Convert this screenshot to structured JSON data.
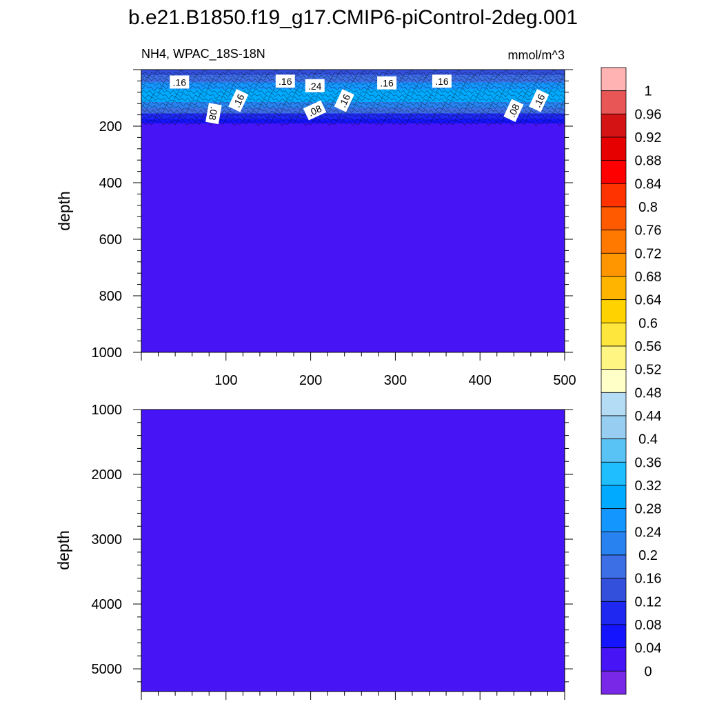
{
  "title": "b.e21.B1850.f19_g17.CMIP6-piControl-2deg.001",
  "chart_data": [
    {
      "type": "heatmap",
      "panel": "upper",
      "left_label": "NH4, WPAC_18S-18N",
      "right_label": "mmol/m^3",
      "ylabel": "depth",
      "xlabel": "",
      "xlim": [
        0,
        500
      ],
      "ylim": [
        1000,
        0
      ],
      "x_ticks": [
        100,
        200,
        300,
        400,
        500
      ],
      "y_ticks": [
        200,
        400,
        600,
        800,
        1000
      ],
      "depth_profile": [
        {
          "depth": 0,
          "value": 0.14
        },
        {
          "depth": 20,
          "value": 0.18
        },
        {
          "depth": 45,
          "value": 0.25
        },
        {
          "depth": 70,
          "value": 0.3
        },
        {
          "depth": 95,
          "value": 0.3
        },
        {
          "depth": 115,
          "value": 0.22
        },
        {
          "depth": 135,
          "value": 0.16
        },
        {
          "depth": 155,
          "value": 0.1
        },
        {
          "depth": 175,
          "value": 0.06
        },
        {
          "depth": 190,
          "value": 0.02
        },
        {
          "depth": 1000,
          "value": 0.02
        }
      ],
      "contour_labels": [
        {
          "text": ".16",
          "x": 45,
          "depth": 45,
          "rotation": 0
        },
        {
          "text": ".16",
          "x": 170,
          "depth": 42,
          "rotation": 0
        },
        {
          "text": ".24",
          "x": 205,
          "depth": 58,
          "rotation": 0
        },
        {
          "text": ".16",
          "x": 290,
          "depth": 48,
          "rotation": 0
        },
        {
          "text": ".16",
          "x": 355,
          "depth": 42,
          "rotation": 0
        },
        {
          "text": ".16",
          "x": 115,
          "depth": 110,
          "rotation": -65
        },
        {
          "text": ".16",
          "x": 240,
          "depth": 110,
          "rotation": -65
        },
        {
          "text": ".16",
          "x": 470,
          "depth": 110,
          "rotation": -65
        },
        {
          "text": ".08",
          "x": 85,
          "depth": 155,
          "rotation": 100
        },
        {
          "text": ".08",
          "x": 205,
          "depth": 145,
          "rotation": -25
        },
        {
          "text": ".08",
          "x": 440,
          "depth": 145,
          "rotation": -65
        }
      ]
    },
    {
      "type": "heatmap",
      "panel": "lower",
      "ylabel": "depth",
      "xlabel": "",
      "xlim": [
        0,
        500
      ],
      "ylim": [
        5350,
        1000
      ],
      "y_ticks": [
        1000,
        2000,
        3000,
        4000,
        5000
      ],
      "value": 0.02
    }
  ],
  "colorbar": {
    "labels": [
      "1",
      "0.96",
      "0.92",
      "0.88",
      "0.84",
      "0.8",
      "0.76",
      "0.72",
      "0.68",
      "0.64",
      "0.6",
      "0.56",
      "0.52",
      "0.48",
      "0.44",
      "0.4",
      "0.36",
      "0.32",
      "0.28",
      "0.24",
      "0.2",
      "0.16",
      "0.12",
      "0.08",
      "0.04",
      "0"
    ],
    "colors": [
      "#ffb3b3",
      "#e85656",
      "#d41414",
      "#e60000",
      "#ff0000",
      "#ff3300",
      "#ff5a00",
      "#ff7800",
      "#ff9600",
      "#ffb400",
      "#ffd200",
      "#ffe63c",
      "#fff582",
      "#ffffc8",
      "#b4dcf5",
      "#96cdf0",
      "#5ac3f5",
      "#1ebeff",
      "#00aaff",
      "#1496ff",
      "#2882f0",
      "#3c6ee6",
      "#3250dc",
      "#1e28f0",
      "#1414ff",
      "#4614f5",
      "#7828e6"
    ]
  }
}
